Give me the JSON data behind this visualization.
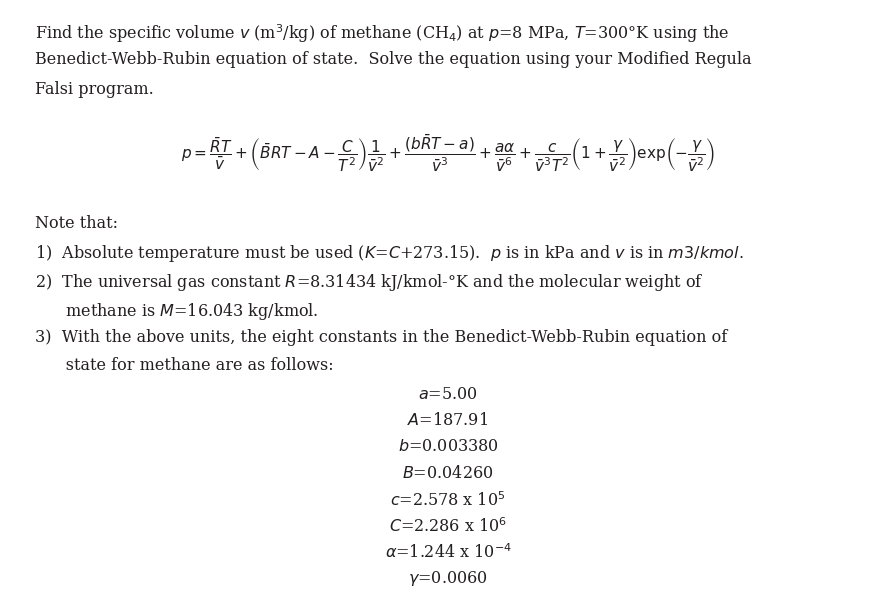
{
  "bg_color": "#ffffff",
  "text_color": "#231F20",
  "font_size": 11.5,
  "fig_width": 8.96,
  "fig_height": 5.93,
  "line1": "Find the specific volume $v$ (m$^3$/kg) of methane (CH$_4$) at $p$=8 MPa, $T$=300°K using the",
  "line2": "Benedict-Webb-Rubin equation of state.  Solve the equation using your Modified Regula",
  "line3": "Falsi program.",
  "note_header": "Note that:",
  "n1": "1)  Absolute temperature must be used ($K$=$C$+273.15).  $p$ is in kPa and $v$ is in $m3/kmol.$",
  "n2a": "2)  The universal gas constant $R$=8.31434 kJ/kmol-°K and the molecular weight of",
  "n2b": "      methane is $M$=16.043 kg/kmol.",
  "n3a": "3)  With the above units, the eight constants in the Benedict-Webb-Rubin equation of",
  "n3b": "      state for methane are as follows:",
  "constants": [
    "$a$=5.00",
    "$A$=187.91",
    "$b$=0.003380",
    "$B$=0.04260",
    "$c$=2.578 x 10$^5$",
    "$C$=2.286 x 10$^6$",
    "$\\alpha$=1.244 x 10$^{-4}$",
    "$\\gamma$=0.0060"
  ],
  "eq_str": "$p = \\dfrac{\\bar{R}T}{\\bar{v}} + \\left(\\bar{B}RT - A - \\dfrac{C}{T^2}\\right)\\dfrac{1}{\\bar{v}^2} + \\dfrac{(b\\bar{R}T - a)}{\\bar{v}^3} + \\dfrac{a\\alpha}{\\bar{v}^6} + \\dfrac{c}{\\bar{v}^3T^2}\\left(1 + \\dfrac{\\gamma}{\\bar{v}^2}\\right)\\exp\\!\\left(-\\dfrac{\\gamma}{\\bar{v}^2}\\right)$"
}
